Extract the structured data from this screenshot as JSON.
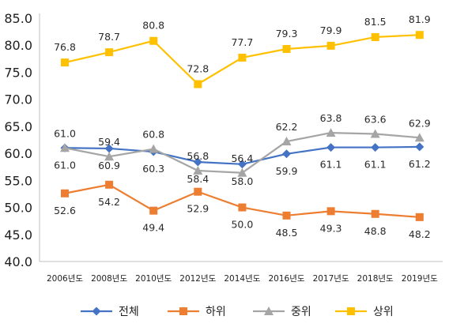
{
  "chart_data": {
    "type": "line",
    "categories": [
      "2006년도",
      "2008년도",
      "2010년도",
      "2012년도",
      "2014년도",
      "2016년도",
      "2017년도",
      "2018년도",
      "2019년도"
    ],
    "ylim": [
      40,
      85
    ],
    "yticks": [
      "40.0",
      "45.0",
      "50.0",
      "55.0",
      "60.0",
      "65.0",
      "70.0",
      "75.0",
      "80.0",
      "85.0"
    ],
    "grid": false,
    "legend_position": "bottom",
    "series": [
      {
        "name": "전체",
        "color": "#4472C4",
        "marker": "diamond",
        "values": [
          61.0,
          60.9,
          60.3,
          58.4,
          58.0,
          59.9,
          61.1,
          61.1,
          61.2
        ],
        "labels": [
          "61.0",
          "60.9",
          "60.3",
          "58.4",
          "58.0",
          "59.9",
          "61.1",
          "61.1",
          "61.2"
        ]
      },
      {
        "name": "하위",
        "color": "#ED7D31",
        "marker": "square",
        "values": [
          52.6,
          54.2,
          49.4,
          52.9,
          50.0,
          48.5,
          49.3,
          48.8,
          48.2
        ],
        "labels": [
          "52.6",
          "54.2",
          "49.4",
          "52.9",
          "50.0",
          "48.5",
          "49.3",
          "48.8",
          "48.2"
        ]
      },
      {
        "name": "중위",
        "color": "#A5A5A5",
        "marker": "triangle",
        "values": [
          61.0,
          59.4,
          60.8,
          56.8,
          56.4,
          62.2,
          63.8,
          63.6,
          62.9
        ],
        "labels": [
          "61.0",
          "59.4",
          "60.8",
          "56.8",
          "56.4",
          "62.2",
          "63.8",
          "63.6",
          "62.9"
        ]
      },
      {
        "name": "상위",
        "color": "#FFC000",
        "marker": "square",
        "values": [
          76.8,
          78.7,
          80.8,
          72.8,
          77.7,
          79.3,
          79.9,
          81.5,
          81.9
        ],
        "labels": [
          "76.8",
          "78.7",
          "80.8",
          "72.8",
          "77.7",
          "79.3",
          "79.9",
          "81.5",
          "81.9"
        ]
      }
    ]
  }
}
